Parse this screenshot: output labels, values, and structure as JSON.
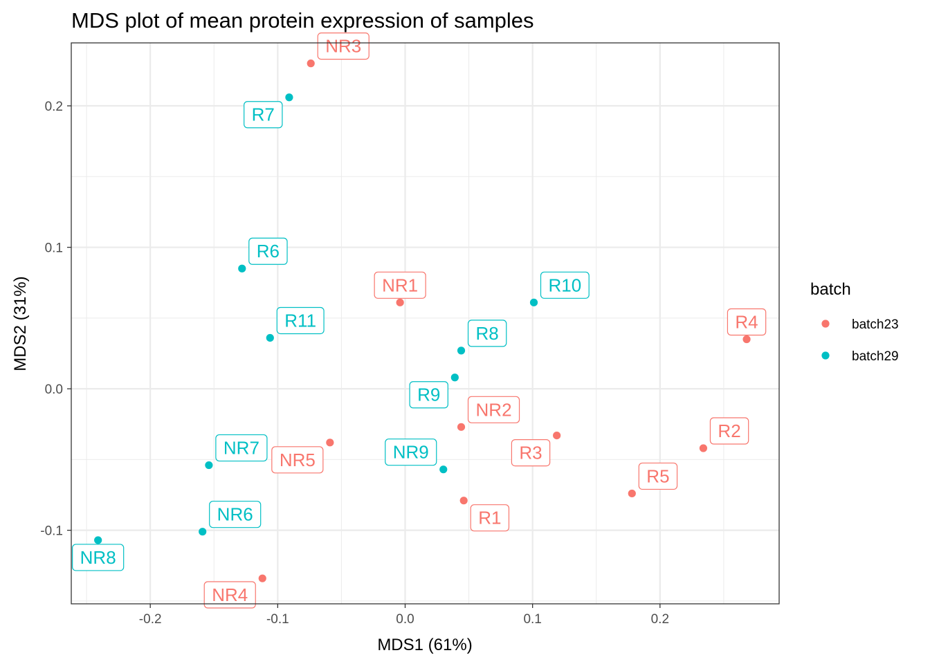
{
  "chart_data": {
    "type": "scatter",
    "title": "MDS plot of mean protein expression of samples",
    "xlabel": "MDS1 (61%)",
    "ylabel": "MDS2 (31%)",
    "xlim": [
      -0.262,
      0.2935
    ],
    "ylim": [
      -0.152,
      0.2445
    ],
    "xticks": [
      -0.2,
      -0.1,
      0.0,
      0.1,
      0.2
    ],
    "xtick_labels": [
      "-0.2",
      "-0.1",
      "0.0",
      "0.1",
      "0.2"
    ],
    "yticks": [
      -0.1,
      0.0,
      0.1,
      0.2
    ],
    "ytick_labels": [
      "-0.1",
      "0.0",
      "0.1",
      "0.2"
    ],
    "grid": true,
    "legend": {
      "title": "batch",
      "position": "right",
      "entries": [
        {
          "label": "batch23",
          "color": "#F8766D"
        },
        {
          "label": "batch29",
          "color": "#00BFC4"
        }
      ]
    },
    "series": [
      {
        "name": "batch23",
        "color": "#F8766D",
        "points": [
          {
            "label": "NR3",
            "x": -0.074,
            "y": 0.23,
            "dir": "ne"
          },
          {
            "label": "NR1",
            "x": -0.004,
            "y": 0.061,
            "dir": "n"
          },
          {
            "label": "R4",
            "x": 0.268,
            "y": 0.035,
            "dir": "n"
          },
          {
            "label": "NR2",
            "x": 0.044,
            "y": -0.027,
            "dir": "ne"
          },
          {
            "label": "R3",
            "x": 0.119,
            "y": -0.033,
            "dir": "sw"
          },
          {
            "label": "R2",
            "x": 0.234,
            "y": -0.042,
            "dir": "ne"
          },
          {
            "label": "NR5",
            "x": -0.059,
            "y": -0.038,
            "dir": "sw"
          },
          {
            "label": "R5",
            "x": 0.178,
            "y": -0.074,
            "dir": "ne"
          },
          {
            "label": "R1",
            "x": 0.046,
            "y": -0.079,
            "dir": "se"
          },
          {
            "label": "NR4",
            "x": -0.112,
            "y": -0.134,
            "dir": "sw"
          }
        ]
      },
      {
        "name": "batch29",
        "color": "#00BFC4",
        "points": [
          {
            "label": "R7",
            "x": -0.091,
            "y": 0.206,
            "dir": "sw"
          },
          {
            "label": "R6",
            "x": -0.128,
            "y": 0.085,
            "dir": "ne"
          },
          {
            "label": "R10",
            "x": 0.101,
            "y": 0.061,
            "dir": "ne"
          },
          {
            "label": "R11",
            "x": -0.106,
            "y": 0.036,
            "dir": "ne"
          },
          {
            "label": "R8",
            "x": 0.044,
            "y": 0.027,
            "dir": "ne"
          },
          {
            "label": "R9",
            "x": 0.039,
            "y": 0.008,
            "dir": "sw"
          },
          {
            "label": "NR7",
            "x": -0.154,
            "y": -0.054,
            "dir": "ne"
          },
          {
            "label": "NR9",
            "x": 0.03,
            "y": -0.057,
            "dir": "nw"
          },
          {
            "label": "NR6",
            "x": -0.159,
            "y": -0.101,
            "dir": "ne"
          },
          {
            "label": "NR8",
            "x": -0.241,
            "y": -0.107,
            "dir": "s"
          }
        ]
      }
    ]
  }
}
